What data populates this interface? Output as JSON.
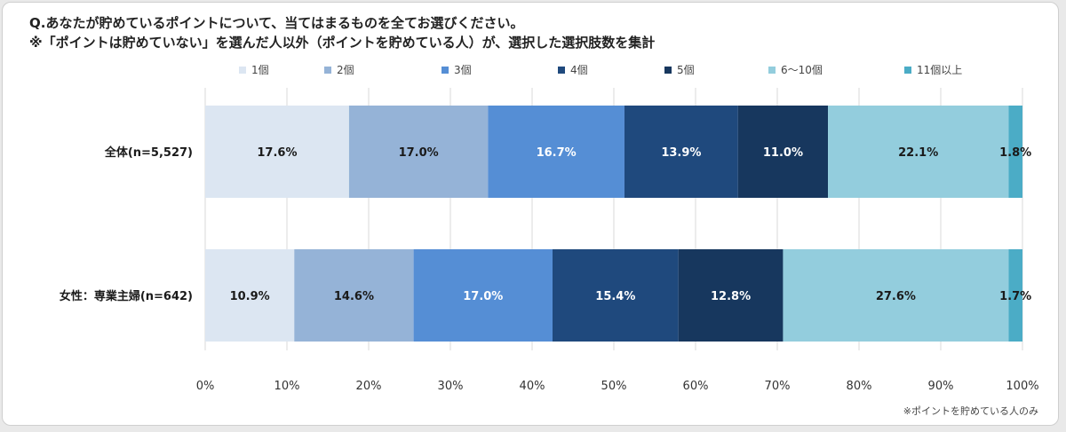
{
  "title_line1": "Q.あなたが貯めているポイントについて、当てはまるものを全てお選びください。",
  "title_line2": "※「ポイントは貯めていない」を選んだ人以外（ポイントを貯めている人）が、選択した選択肢数を集計",
  "footnote": "※ポイントを貯めている人のみ",
  "colors": {
    "segments": [
      "#dce6f2",
      "#95b3d7",
      "#558ed5",
      "#1f497d",
      "#17375e",
      "#93cddd",
      "#4bacc6"
    ],
    "label_text": [
      "#1a1a1a",
      "#1a1a1a",
      "#ffffff",
      "#ffffff",
      "#ffffff",
      "#1a1a1a",
      "#1a1a1a"
    ],
    "grid": "#d9d9d9"
  },
  "chart_data": {
    "type": "bar",
    "orientation": "horizontal",
    "stacked": true,
    "categories": [
      "全体(n=5,527)",
      "女性：専業主婦(n=642)"
    ],
    "series": [
      {
        "name": "1個",
        "values": [
          17.6,
          10.9
        ]
      },
      {
        "name": "2個",
        "values": [
          17.0,
          14.6
        ]
      },
      {
        "name": "3個",
        "values": [
          16.7,
          17.0
        ]
      },
      {
        "name": "4個",
        "values": [
          13.9,
          15.4
        ]
      },
      {
        "name": "5個",
        "values": [
          11.0,
          12.8
        ]
      },
      {
        "name": "6～10個",
        "values": [
          22.1,
          27.6
        ]
      },
      {
        "name": "11個以上",
        "values": [
          1.8,
          1.7
        ]
      }
    ],
    "value_suffix": "%",
    "x_ticks": [
      "0%",
      "10%",
      "20%",
      "30%",
      "40%",
      "50%",
      "60%",
      "70%",
      "80%",
      "90%",
      "100%"
    ],
    "xlim": [
      0,
      100
    ],
    "grid": true,
    "legend_position": "top"
  }
}
